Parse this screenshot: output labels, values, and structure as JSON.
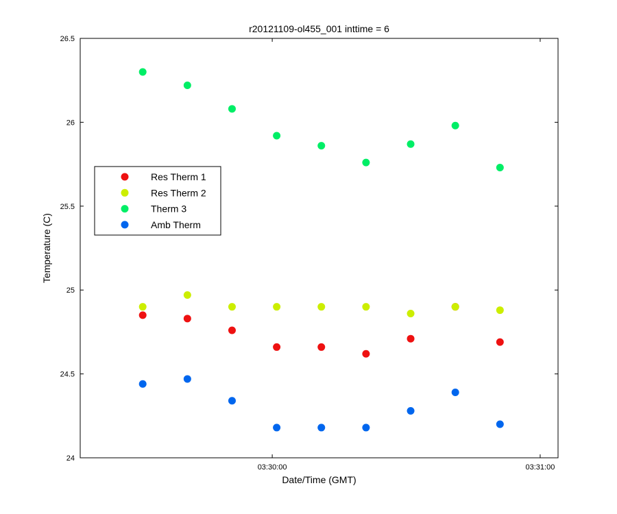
{
  "chart_data": {
    "type": "scatter",
    "title": "r20121109-ol455_001 inttime = 6",
    "xlabel": "Date/Time (GMT)",
    "ylabel": "Temperature (C)",
    "x_unit": "time (GMT, HH:MM:SS)",
    "xlim": [
      "03:29:17",
      "03:31:04"
    ],
    "ylim": [
      24,
      26.5
    ],
    "x_ticks": [
      "03:30:00",
      "03:31:00"
    ],
    "y_ticks": [
      24,
      24.5,
      25,
      25.5,
      26,
      26.5
    ],
    "grid": false,
    "legend_position": "middle-left",
    "x": [
      "03:29:31",
      "03:29:41",
      "03:29:51",
      "03:30:01",
      "03:30:11",
      "03:30:21",
      "03:30:31",
      "03:30:41",
      "03:30:51"
    ],
    "series": [
      {
        "name": "Res Therm 1",
        "color": "#ee1111",
        "values": [
          24.85,
          24.83,
          24.76,
          24.66,
          24.66,
          24.62,
          24.71,
          24.9,
          24.69
        ],
        "x_index": [
          0,
          1,
          2,
          3,
          4,
          5,
          6,
          7,
          8
        ]
      },
      {
        "name": "Res Therm 2",
        "color": "#ccee00",
        "values": [
          24.9,
          24.97,
          24.9,
          24.9,
          24.9,
          24.9,
          24.86,
          24.9,
          24.88
        ],
        "x_index": [
          0,
          1,
          2,
          3,
          4,
          5,
          6,
          7,
          8
        ]
      },
      {
        "name": "Therm 3",
        "color": "#00ee66",
        "values": [
          26.3,
          26.22,
          26.08,
          25.92,
          25.86,
          25.76,
          25.87,
          25.98,
          25.73
        ],
        "x_index": [
          0,
          1,
          2,
          3,
          4,
          5,
          6,
          7,
          8
        ]
      },
      {
        "name": "Amb Therm",
        "color": "#0066ee",
        "values": [
          24.44,
          24.47,
          24.34,
          24.18,
          24.18,
          24.18,
          24.28,
          24.39,
          24.2
        ],
        "x_index": [
          0,
          1,
          2,
          3,
          4,
          5,
          6,
          7,
          8
        ]
      }
    ]
  }
}
